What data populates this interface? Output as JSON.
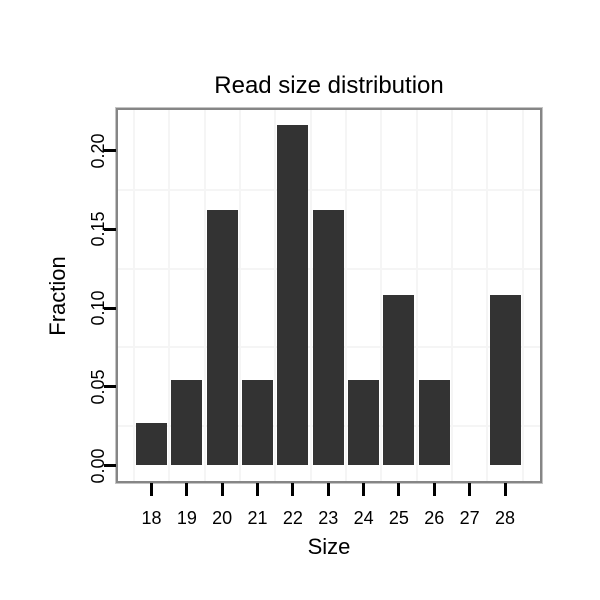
{
  "title": "Read size distribution",
  "x_axis": {
    "label": "Size"
  },
  "y_axis": {
    "label": "Fraction"
  },
  "colors": {
    "bar": "#333333",
    "grid": "#f5f5f5",
    "panel_border": "#868686",
    "tick": "#000000",
    "text": "#000000",
    "background": "#ffffff"
  },
  "chart_data": {
    "type": "bar",
    "title": "Read size distribution",
    "xlabel": "Size",
    "ylabel": "Fraction",
    "categories": [
      18,
      19,
      20,
      21,
      22,
      23,
      24,
      25,
      26,
      27,
      28
    ],
    "values": [
      0.027,
      0.054,
      0.162,
      0.054,
      0.216,
      0.162,
      0.054,
      0.108,
      0.054,
      0,
      0.108
    ],
    "y_major_ticks": [
      "0.00",
      "0.05",
      "0.10",
      "0.15",
      "0.20"
    ],
    "y_major_values": [
      0.0,
      0.05,
      0.1,
      0.15,
      0.2
    ],
    "y_minor_grid": [
      0.025,
      0.075,
      0.125,
      0.175
    ],
    "ylim": [
      -0.0105,
      0.2255
    ],
    "grid": "minor-only",
    "legend": "none"
  }
}
